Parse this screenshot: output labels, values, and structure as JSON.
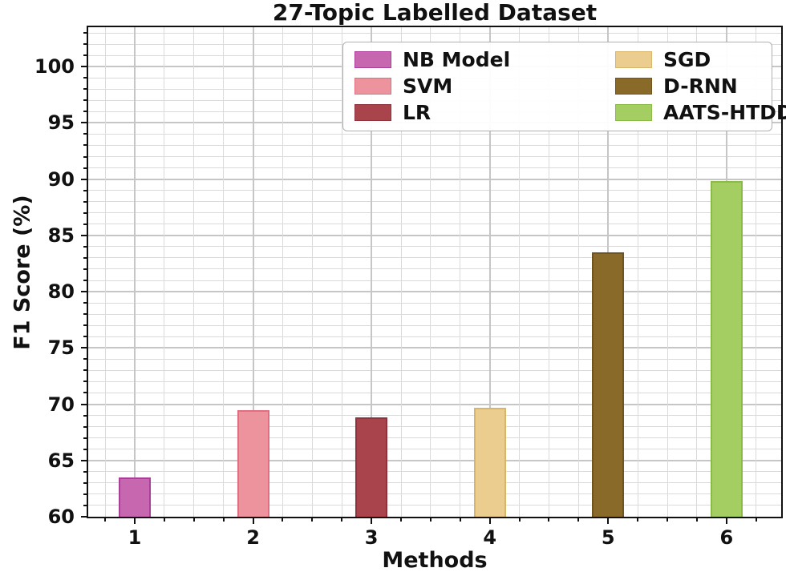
{
  "figure": {
    "title": "27-Topic Labelled Dataset",
    "xlabel": "Methods",
    "ylabel": "F1 Score (%)"
  },
  "chart_data": {
    "type": "bar",
    "title": "27-Topic Labelled Dataset",
    "xlabel": "Methods",
    "ylabel": "F1 Score (%)",
    "categories": [
      "1",
      "2",
      "3",
      "4",
      "5",
      "6"
    ],
    "series": [
      {
        "name": "NB Model",
        "x": 1,
        "value": 63.5,
        "fill": "#c767b0",
        "edge": "#ad3d9a"
      },
      {
        "name": "SVM",
        "x": 2,
        "value": 69.5,
        "fill": "#ec939e",
        "edge": "#e06e7e"
      },
      {
        "name": "LR",
        "x": 3,
        "value": 68.8,
        "fill": "#a9434c",
        "edge": "#8e333c"
      },
      {
        "name": "SGD",
        "x": 4,
        "value": 69.7,
        "fill": "#ebcd90",
        "edge": "#d9b46c"
      },
      {
        "name": "D-RNN",
        "x": 5,
        "value": 83.5,
        "fill": "#8a6a29",
        "edge": "#6f541f"
      },
      {
        "name": "AATS-HTDDNN",
        "x": 6,
        "value": 89.8,
        "fill": "#a5ce62",
        "edge": "#8bbb46"
      }
    ],
    "ylim": [
      60,
      103.5
    ],
    "yticks": [
      60,
      65,
      70,
      75,
      80,
      85,
      90,
      95,
      100
    ],
    "xticks": [
      1,
      2,
      3,
      4,
      5,
      6
    ],
    "minor_x_step": 0.25,
    "minor_y_step": 1,
    "grid": {
      "on": "both",
      "major_color": "#c6c6c6",
      "minor_color": "#dadada"
    },
    "legend": {
      "position": "upper center",
      "columns": 2,
      "column1": [
        "NB Model",
        "SVM",
        "LR"
      ],
      "column2": [
        "SGD",
        "D-RNN",
        "AATS-HTDDNN"
      ]
    }
  }
}
